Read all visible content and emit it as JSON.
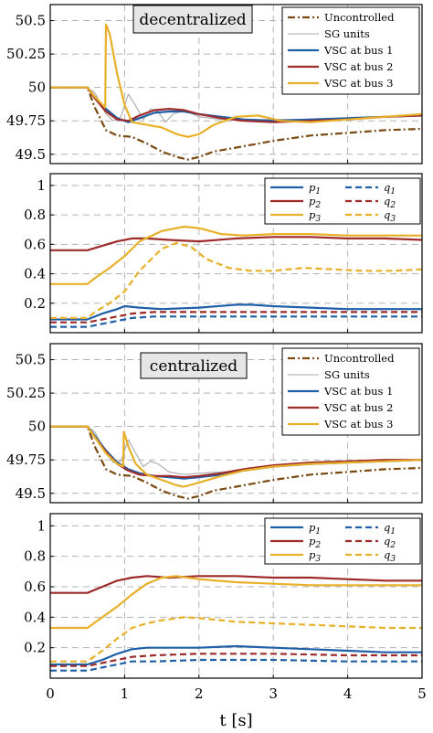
{
  "colors": {
    "Uncontrolled": "#7a4a12",
    "SG units": "#a9a9a9",
    "VSC at bus 1": "#1f5fa8",
    "VSC at bus 2": "#9e2a2a",
    "VSC at bus 3": "#e8b028"
  },
  "chart_data": [
    {
      "type": "line",
      "id": "freq_decentralized",
      "annotation": "decentralized",
      "xlim": [
        0,
        5
      ],
      "ylim": [
        49.43,
        50.62
      ],
      "yticks": [
        49.5,
        49.75,
        50,
        50.25,
        50.5
      ],
      "ytick_labels": [
        "49.5",
        "49.75",
        "50",
        "50.25",
        "50.5"
      ],
      "legend": [
        "Uncontrolled",
        "SG units",
        "VSC at bus 1",
        "VSC at bus 2",
        "VSC at bus 3"
      ],
      "series": [
        {
          "name": "Uncontrolled",
          "style": "dashdot",
          "x": [
            0,
            0.5,
            0.6,
            0.75,
            0.9,
            1.1,
            1.3,
            1.5,
            1.7,
            1.85,
            2.0,
            2.2,
            2.5,
            3,
            3.5,
            4,
            4.5,
            5
          ],
          "y": [
            50,
            50,
            49.85,
            49.68,
            49.64,
            49.63,
            49.58,
            49.52,
            49.48,
            49.46,
            49.48,
            49.52,
            49.55,
            49.6,
            49.64,
            49.66,
            49.68,
            49.69
          ]
        },
        {
          "name": "SG units",
          "style": "solid",
          "x": [
            0,
            0.5,
            0.6,
            0.75,
            0.85,
            0.95,
            1.05,
            1.15,
            1.25,
            1.35,
            1.45,
            1.55,
            1.65,
            1.8,
            2.0,
            2.3,
            2.6,
            3,
            3.5,
            4,
            4.5,
            5
          ],
          "y": [
            50,
            50,
            49.96,
            49.8,
            49.75,
            49.78,
            49.95,
            49.86,
            49.76,
            49.84,
            49.82,
            49.74,
            49.8,
            49.83,
            49.78,
            49.76,
            49.76,
            49.76,
            49.76,
            49.77,
            49.78,
            49.79
          ]
        },
        {
          "name": "VSC at bus 1",
          "style": "solid",
          "x": [
            0,
            0.5,
            0.6,
            0.75,
            0.9,
            1.05,
            1.2,
            1.4,
            1.6,
            1.8,
            2.0,
            2.3,
            2.6,
            3,
            3.5,
            4,
            4.5,
            5
          ],
          "y": [
            50,
            50,
            49.93,
            49.84,
            49.77,
            49.74,
            49.77,
            49.81,
            49.82,
            49.82,
            49.8,
            49.78,
            49.76,
            49.75,
            49.76,
            49.77,
            49.78,
            49.79
          ]
        },
        {
          "name": "VSC at bus 2",
          "style": "solid",
          "x": [
            0,
            0.5,
            0.6,
            0.75,
            0.9,
            1.05,
            1.2,
            1.4,
            1.6,
            1.8,
            2.0,
            2.3,
            2.6,
            3,
            3.5,
            4,
            4.5,
            5
          ],
          "y": [
            50,
            50,
            49.92,
            49.82,
            49.76,
            49.75,
            49.79,
            49.83,
            49.84,
            49.83,
            49.8,
            49.77,
            49.75,
            49.74,
            49.75,
            49.76,
            49.78,
            49.79
          ]
        },
        {
          "name": "VSC at bus 3",
          "style": "solid",
          "x": [
            0,
            0.5,
            0.6,
            0.74,
            0.75,
            0.8,
            0.9,
            1.0,
            1.1,
            1.3,
            1.5,
            1.7,
            1.85,
            2.0,
            2.2,
            2.5,
            2.8,
            3.1,
            3.5,
            4,
            4.5,
            5
          ],
          "y": [
            50,
            50,
            49.93,
            49.85,
            50.47,
            50.4,
            50.1,
            49.87,
            49.74,
            49.72,
            49.7,
            49.65,
            49.63,
            49.65,
            49.72,
            49.78,
            49.79,
            49.75,
            49.74,
            49.76,
            49.78,
            49.8
          ]
        }
      ]
    },
    {
      "type": "line",
      "id": "power_decentralized",
      "xlim": [
        0,
        5
      ],
      "ylim": [
        0,
        1.08
      ],
      "yticks": [
        0.2,
        0.4,
        0.6,
        0.8,
        1
      ],
      "ytick_labels": [
        "0.2",
        "0.4",
        "0.6",
        "0.8",
        "1"
      ],
      "legend": [
        "p_c1",
        "p_c2",
        "p_c3",
        "q_c1",
        "q_c2",
        "q_c3"
      ],
      "series": [
        {
          "name": "p_c1",
          "color_key": "VSC at bus 1",
          "style": "solid",
          "x": [
            0,
            0.5,
            0.7,
            0.9,
            1.0,
            1.2,
            1.5,
            2.0,
            2.5,
            2.7,
            3,
            3.5,
            4,
            4.5,
            5
          ],
          "y": [
            0.09,
            0.09,
            0.13,
            0.16,
            0.18,
            0.17,
            0.16,
            0.17,
            0.19,
            0.19,
            0.18,
            0.17,
            0.16,
            0.16,
            0.16
          ]
        },
        {
          "name": "p_c2",
          "color_key": "VSC at bus 2",
          "style": "solid",
          "x": [
            0,
            0.5,
            0.7,
            0.9,
            1.1,
            1.3,
            1.6,
            2.0,
            2.5,
            3,
            3.5,
            4,
            4.5,
            5
          ],
          "y": [
            0.56,
            0.56,
            0.59,
            0.62,
            0.64,
            0.64,
            0.63,
            0.62,
            0.64,
            0.65,
            0.65,
            0.64,
            0.64,
            0.63
          ]
        },
        {
          "name": "p_c3",
          "color_key": "VSC at bus 3",
          "style": "solid",
          "x": [
            0,
            0.5,
            0.6,
            0.8,
            1.0,
            1.2,
            1.5,
            1.8,
            2.0,
            2.3,
            2.6,
            3,
            3.5,
            4,
            4.5,
            5
          ],
          "y": [
            0.33,
            0.33,
            0.37,
            0.44,
            0.52,
            0.62,
            0.69,
            0.72,
            0.71,
            0.67,
            0.66,
            0.67,
            0.67,
            0.66,
            0.66,
            0.66
          ]
        },
        {
          "name": "q_c1",
          "color_key": "VSC at bus 1",
          "style": "dashed",
          "x": [
            0,
            0.5,
            0.7,
            0.9,
            1.1,
            1.4,
            2.0,
            3,
            4,
            5
          ],
          "y": [
            0.04,
            0.04,
            0.06,
            0.08,
            0.1,
            0.11,
            0.11,
            0.11,
            0.11,
            0.11
          ]
        },
        {
          "name": "q_c2",
          "color_key": "VSC at bus 2",
          "style": "dashed",
          "x": [
            0,
            0.5,
            0.7,
            0.9,
            1.1,
            1.4,
            2.0,
            3,
            4,
            5
          ],
          "y": [
            0.07,
            0.07,
            0.09,
            0.11,
            0.13,
            0.14,
            0.14,
            0.14,
            0.14,
            0.14
          ]
        },
        {
          "name": "q_c3",
          "color_key": "VSC at bus 3",
          "style": "dashed",
          "x": [
            0,
            0.5,
            0.6,
            0.8,
            1.0,
            1.2,
            1.5,
            1.7,
            1.9,
            2.1,
            2.4,
            2.7,
            3,
            3.4,
            3.8,
            4.2,
            4.6,
            5
          ],
          "y": [
            0.1,
            0.1,
            0.14,
            0.2,
            0.28,
            0.42,
            0.57,
            0.61,
            0.58,
            0.5,
            0.44,
            0.42,
            0.42,
            0.44,
            0.43,
            0.42,
            0.42,
            0.43
          ]
        }
      ]
    },
    {
      "type": "line",
      "id": "freq_centralized",
      "annotation": "centralized",
      "xlim": [
        0,
        5
      ],
      "ylim": [
        49.43,
        50.62
      ],
      "yticks": [
        49.5,
        49.75,
        50,
        50.25,
        50.5
      ],
      "ytick_labels": [
        "49.5",
        "49.75",
        "50",
        "50.25",
        "50.5"
      ],
      "legend": [
        "Uncontrolled",
        "SG units",
        "VSC at bus 1",
        "VSC at bus 2",
        "VSC at bus 3"
      ],
      "series": [
        {
          "name": "Uncontrolled",
          "style": "dashdot",
          "x": [
            0,
            0.5,
            0.6,
            0.75,
            0.9,
            1.1,
            1.3,
            1.5,
            1.7,
            1.85,
            2.0,
            2.2,
            2.5,
            3,
            3.5,
            4,
            4.5,
            5
          ],
          "y": [
            50,
            50,
            49.85,
            49.68,
            49.64,
            49.63,
            49.58,
            49.52,
            49.48,
            49.46,
            49.48,
            49.52,
            49.55,
            49.6,
            49.64,
            49.66,
            49.68,
            49.69
          ]
        },
        {
          "name": "SG units",
          "style": "solid",
          "x": [
            0,
            0.5,
            0.6,
            0.75,
            0.85,
            0.95,
            1.05,
            1.15,
            1.25,
            1.35,
            1.45,
            1.6,
            1.8,
            2.0,
            2.3,
            2.6,
            3,
            3.5,
            4,
            4.5,
            5
          ],
          "y": [
            50,
            50,
            49.96,
            49.8,
            49.73,
            49.74,
            49.9,
            49.8,
            49.7,
            49.74,
            49.72,
            49.66,
            49.64,
            49.65,
            49.66,
            49.67,
            49.7,
            49.72,
            49.73,
            49.74,
            49.75
          ]
        },
        {
          "name": "VSC at bus 1",
          "style": "solid",
          "x": [
            0,
            0.5,
            0.6,
            0.75,
            0.9,
            1.05,
            1.2,
            1.4,
            1.6,
            1.8,
            2.0,
            2.3,
            2.6,
            3,
            3.5,
            4,
            4.5,
            5
          ],
          "y": [
            50,
            50,
            49.93,
            49.82,
            49.73,
            49.68,
            49.65,
            49.63,
            49.62,
            49.61,
            49.62,
            49.64,
            49.67,
            49.7,
            49.72,
            49.73,
            49.74,
            49.75
          ]
        },
        {
          "name": "VSC at bus 2",
          "style": "solid",
          "x": [
            0,
            0.5,
            0.6,
            0.75,
            0.9,
            1.05,
            1.2,
            1.4,
            1.6,
            1.8,
            2.0,
            2.3,
            2.6,
            3,
            3.5,
            4,
            4.5,
            5
          ],
          "y": [
            50,
            50,
            49.92,
            49.81,
            49.72,
            49.67,
            49.64,
            49.63,
            49.63,
            49.62,
            49.63,
            49.65,
            49.68,
            49.71,
            49.73,
            49.74,
            49.75,
            49.75
          ]
        },
        {
          "name": "VSC at bus 3",
          "style": "solid",
          "x": [
            0,
            0.5,
            0.6,
            0.75,
            0.9,
            0.98,
            0.99,
            1.05,
            1.15,
            1.3,
            1.5,
            1.7,
            1.8,
            2.0,
            2.3,
            2.6,
            3,
            3.5,
            4,
            4.5,
            5
          ],
          "y": [
            50,
            50,
            49.92,
            49.8,
            49.72,
            49.7,
            49.96,
            49.85,
            49.72,
            49.64,
            49.6,
            49.56,
            49.55,
            49.58,
            49.63,
            49.67,
            49.7,
            49.72,
            49.73,
            49.74,
            49.75
          ]
        }
      ]
    },
    {
      "type": "line",
      "id": "power_centralized",
      "xlim": [
        0,
        5
      ],
      "ylim": [
        0,
        1.08
      ],
      "yticks": [
        0.2,
        0.4,
        0.6,
        0.8,
        1
      ],
      "ytick_labels": [
        "0.2",
        "0.4",
        "0.6",
        "0.8",
        "1"
      ],
      "xticks": [
        0,
        1,
        2,
        3,
        4,
        5
      ],
      "xtick_labels": [
        "0",
        "1",
        "2",
        "3",
        "4",
        "5"
      ],
      "xlabel": "t [s]",
      "legend": [
        "p_c1",
        "p_c2",
        "p_c3",
        "q_c1",
        "q_c2",
        "q_c3"
      ],
      "series": [
        {
          "name": "p_c1",
          "color_key": "VSC at bus 1",
          "style": "solid",
          "x": [
            0,
            0.5,
            0.7,
            0.9,
            1.1,
            1.3,
            1.6,
            2.0,
            2.5,
            3,
            3.5,
            4,
            4.5,
            5
          ],
          "y": [
            0.09,
            0.09,
            0.12,
            0.16,
            0.19,
            0.2,
            0.2,
            0.2,
            0.21,
            0.2,
            0.19,
            0.18,
            0.17,
            0.17
          ]
        },
        {
          "name": "p_c2",
          "color_key": "VSC at bus 2",
          "style": "solid",
          "x": [
            0,
            0.5,
            0.7,
            0.9,
            1.1,
            1.3,
            1.6,
            2.0,
            2.5,
            3,
            3.5,
            4,
            4.5,
            5
          ],
          "y": [
            0.56,
            0.56,
            0.6,
            0.64,
            0.66,
            0.67,
            0.66,
            0.67,
            0.67,
            0.66,
            0.66,
            0.65,
            0.64,
            0.64
          ]
        },
        {
          "name": "p_c3",
          "color_key": "VSC at bus 3",
          "style": "solid",
          "x": [
            0,
            0.5,
            0.7,
            0.9,
            1.1,
            1.3,
            1.5,
            1.7,
            2.0,
            2.5,
            3,
            3.5,
            4,
            4.5,
            5
          ],
          "y": [
            0.33,
            0.33,
            0.4,
            0.47,
            0.55,
            0.62,
            0.66,
            0.67,
            0.65,
            0.63,
            0.62,
            0.61,
            0.61,
            0.61,
            0.61
          ]
        },
        {
          "name": "q_c1",
          "color_key": "VSC at bus 1",
          "style": "dashed",
          "x": [
            0,
            0.5,
            0.7,
            0.9,
            1.1,
            1.4,
            2.0,
            3,
            4,
            5
          ],
          "y": [
            0.05,
            0.05,
            0.07,
            0.09,
            0.11,
            0.11,
            0.12,
            0.12,
            0.11,
            0.11
          ]
        },
        {
          "name": "q_c2",
          "color_key": "VSC at bus 2",
          "style": "dashed",
          "x": [
            0,
            0.5,
            0.7,
            0.9,
            1.1,
            1.4,
            2.0,
            3,
            4,
            5
          ],
          "y": [
            0.08,
            0.08,
            0.1,
            0.12,
            0.14,
            0.15,
            0.16,
            0.16,
            0.15,
            0.15
          ]
        },
        {
          "name": "q_c3",
          "color_key": "VSC at bus 3",
          "style": "dashed",
          "x": [
            0,
            0.5,
            0.7,
            0.9,
            1.1,
            1.3,
            1.5,
            1.8,
            2.1,
            2.5,
            3,
            3.5,
            4,
            4.5,
            5
          ],
          "y": [
            0.11,
            0.11,
            0.18,
            0.26,
            0.33,
            0.36,
            0.38,
            0.4,
            0.39,
            0.37,
            0.36,
            0.35,
            0.34,
            0.33,
            0.33
          ]
        }
      ]
    }
  ]
}
